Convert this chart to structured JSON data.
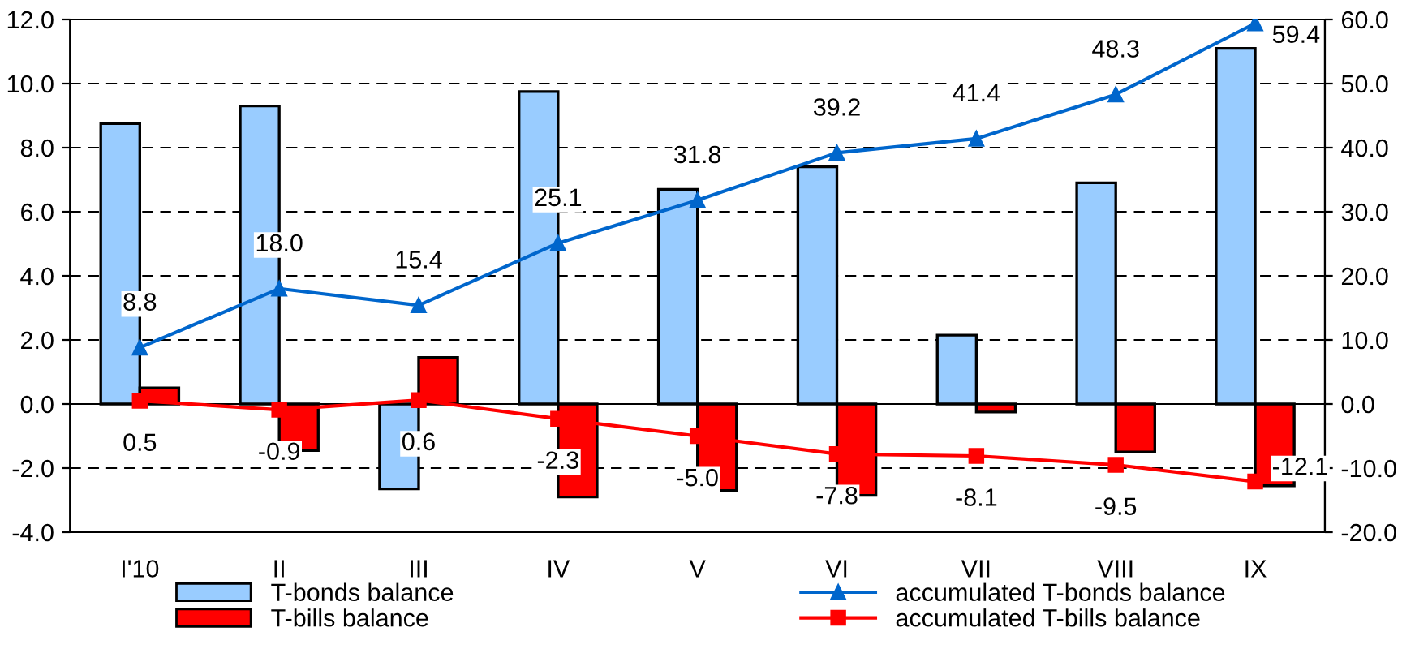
{
  "chart_data": {
    "type": "bar",
    "categories": [
      "I'10",
      "II",
      "III",
      "IV",
      "V",
      "VI",
      "VII",
      "VIII",
      "IX"
    ],
    "series": [
      {
        "name": "T-bonds balance",
        "color": "#99ccff",
        "values": [
          8.75,
          9.3,
          -2.65,
          9.75,
          6.7,
          7.4,
          2.15,
          6.9,
          11.1
        ]
      },
      {
        "name": "T-bills balance",
        "color": "#ff0000",
        "values": [
          0.5,
          -1.45,
          1.45,
          -2.9,
          -2.7,
          -2.85,
          -0.25,
          -1.5,
          -2.55
        ]
      },
      {
        "name": "accumulated T-bonds balance",
        "type": "line",
        "axis": "y2",
        "color": "#0066cc",
        "marker": "triangle",
        "values": [
          8.8,
          18.0,
          15.4,
          25.1,
          31.8,
          39.2,
          41.4,
          48.3,
          59.4
        ],
        "value_labels": [
          "8.8",
          "18.0",
          "15.4",
          "25.1",
          "31.8",
          "39.2",
          "41.4",
          "48.3",
          "59.4"
        ]
      },
      {
        "name": "accumulated T-bills balance",
        "type": "line",
        "axis": "y2",
        "color": "#ff0000",
        "marker": "square",
        "values": [
          0.5,
          -0.9,
          0.6,
          -2.3,
          -5.0,
          -7.8,
          -8.1,
          -9.5,
          -12.1
        ],
        "value_labels": [
          "0.5",
          "-0.9",
          "0.6",
          "-2.3",
          "-5.0",
          "-7.8",
          "-8.1",
          "-9.5",
          "-12.1"
        ]
      }
    ],
    "ylim": [
      -4,
      12
    ],
    "yticks": [
      {
        "value": -4,
        "label": "-4.0"
      },
      {
        "value": -2,
        "label": "-2.0"
      },
      {
        "value": 0,
        "label": "0.0"
      },
      {
        "value": 2,
        "label": "2.0"
      },
      {
        "value": 4,
        "label": "4.0"
      },
      {
        "value": 6,
        "label": "6.0"
      },
      {
        "value": 8,
        "label": "8.0"
      },
      {
        "value": 10,
        "label": "10.0"
      },
      {
        "value": 12,
        "label": "12.0"
      }
    ],
    "y2lim": [
      -20,
      60
    ],
    "y2ticks": [
      {
        "value": -20,
        "label": "-20.0"
      },
      {
        "value": -10,
        "label": "-10.0"
      },
      {
        "value": 0,
        "label": "0.0"
      },
      {
        "value": 10,
        "label": "10.0"
      },
      {
        "value": 20,
        "label": "20.0"
      },
      {
        "value": 30,
        "label": "30.0"
      },
      {
        "value": 40,
        "label": "40.0"
      },
      {
        "value": 50,
        "label": "50.0"
      },
      {
        "value": 60,
        "label": "60.0"
      }
    ],
    "grid": "y",
    "legend": "bottom"
  }
}
